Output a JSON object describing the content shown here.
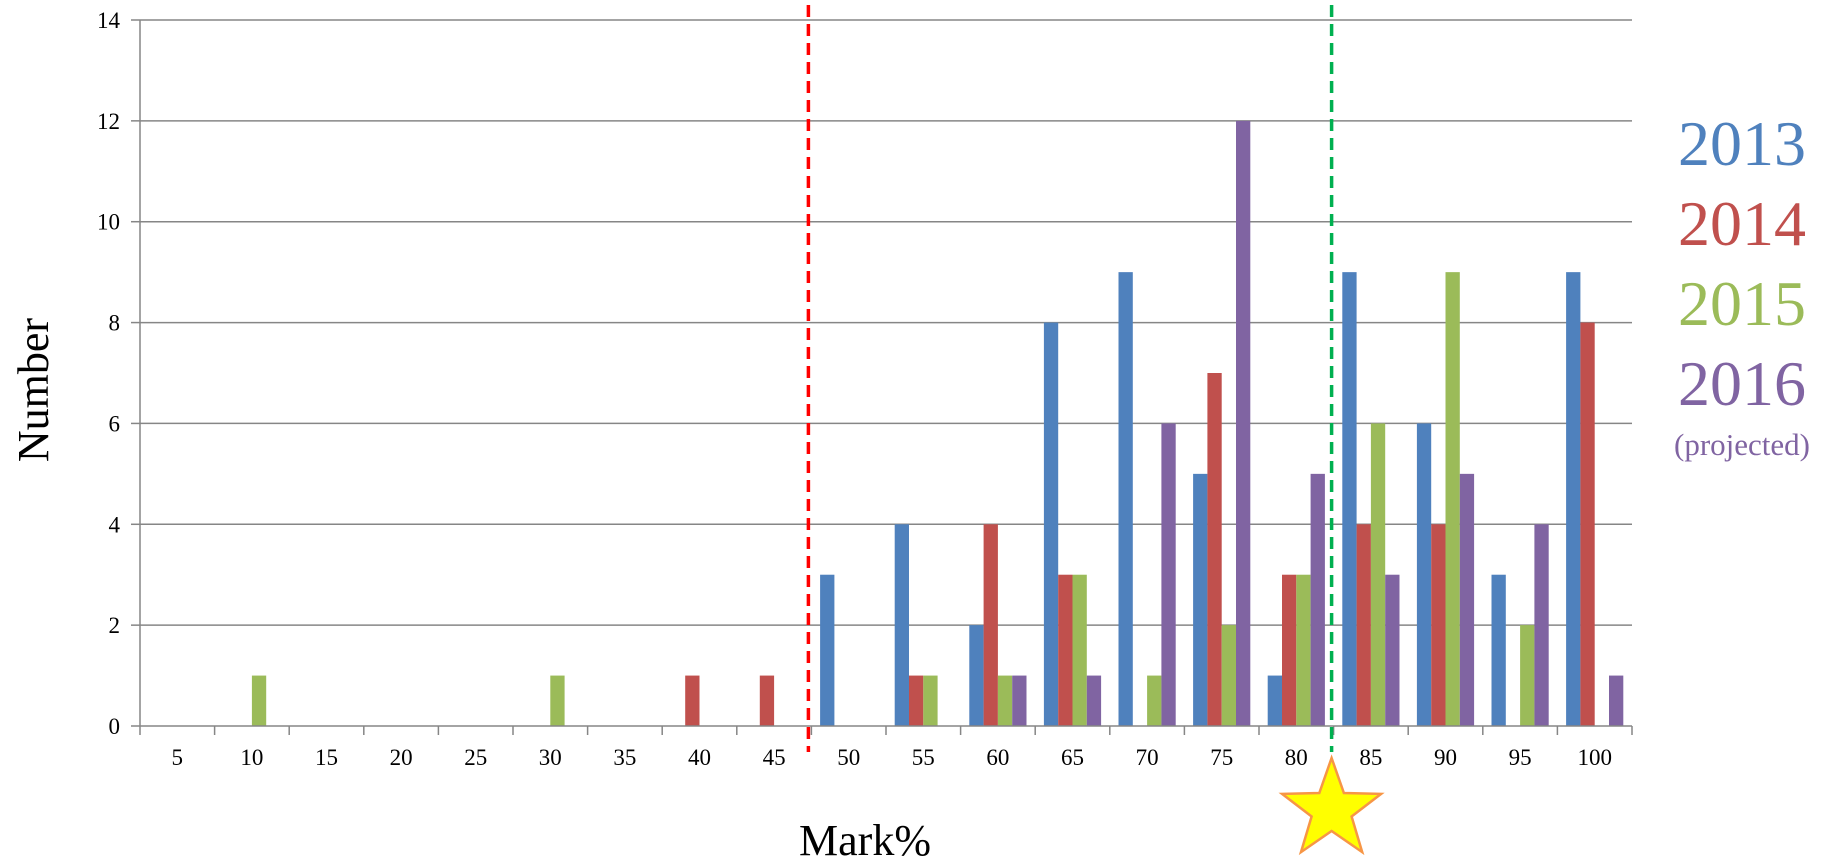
{
  "chart_data": {
    "type": "bar",
    "categories": [
      "5",
      "10",
      "15",
      "20",
      "25",
      "30",
      "35",
      "40",
      "45",
      "50",
      "55",
      "60",
      "65",
      "70",
      "75",
      "80",
      "85",
      "90",
      "95",
      "100"
    ],
    "series": [
      {
        "name": "2013",
        "color": "#4F81BD",
        "values": [
          0,
          0,
          0,
          0,
          0,
          0,
          0,
          0,
          0,
          3,
          4,
          2,
          8,
          9,
          5,
          1,
          9,
          6,
          3,
          9
        ]
      },
      {
        "name": "2014",
        "color": "#C0504D",
        "values": [
          0,
          0,
          0,
          0,
          0,
          0,
          0,
          1,
          1,
          0,
          1,
          4,
          3,
          0,
          7,
          3,
          4,
          4,
          0,
          8
        ]
      },
      {
        "name": "2015",
        "color": "#9BBB59",
        "values": [
          0,
          1,
          0,
          0,
          0,
          1,
          0,
          0,
          0,
          0,
          1,
          1,
          3,
          1,
          2,
          3,
          6,
          9,
          2,
          0
        ]
      },
      {
        "name": "2016",
        "color": "#8064A2",
        "values": [
          0,
          0,
          0,
          0,
          0,
          0,
          0,
          0,
          0,
          0,
          0,
          1,
          1,
          6,
          12,
          5,
          3,
          5,
          4,
          1
        ]
      }
    ],
    "legend_note": "(projected)",
    "xlabel": "Mark%",
    "ylabel": "Number",
    "ylim": [
      0,
      14
    ],
    "yticks": [
      0,
      2,
      4,
      6,
      8,
      10,
      12,
      14
    ],
    "grid": "horizontal",
    "legend_position": "right",
    "reference_lines": [
      {
        "at": "between 45 and 50",
        "color": "#FF0000",
        "style": "dashed"
      },
      {
        "at": "between 80 and 85",
        "color": "#00B050",
        "style": "dashed"
      }
    ],
    "marker": {
      "icon": "star-icon",
      "color": "#FFFF00",
      "stroke": "#F79646",
      "at": "between 80 and 85"
    }
  }
}
